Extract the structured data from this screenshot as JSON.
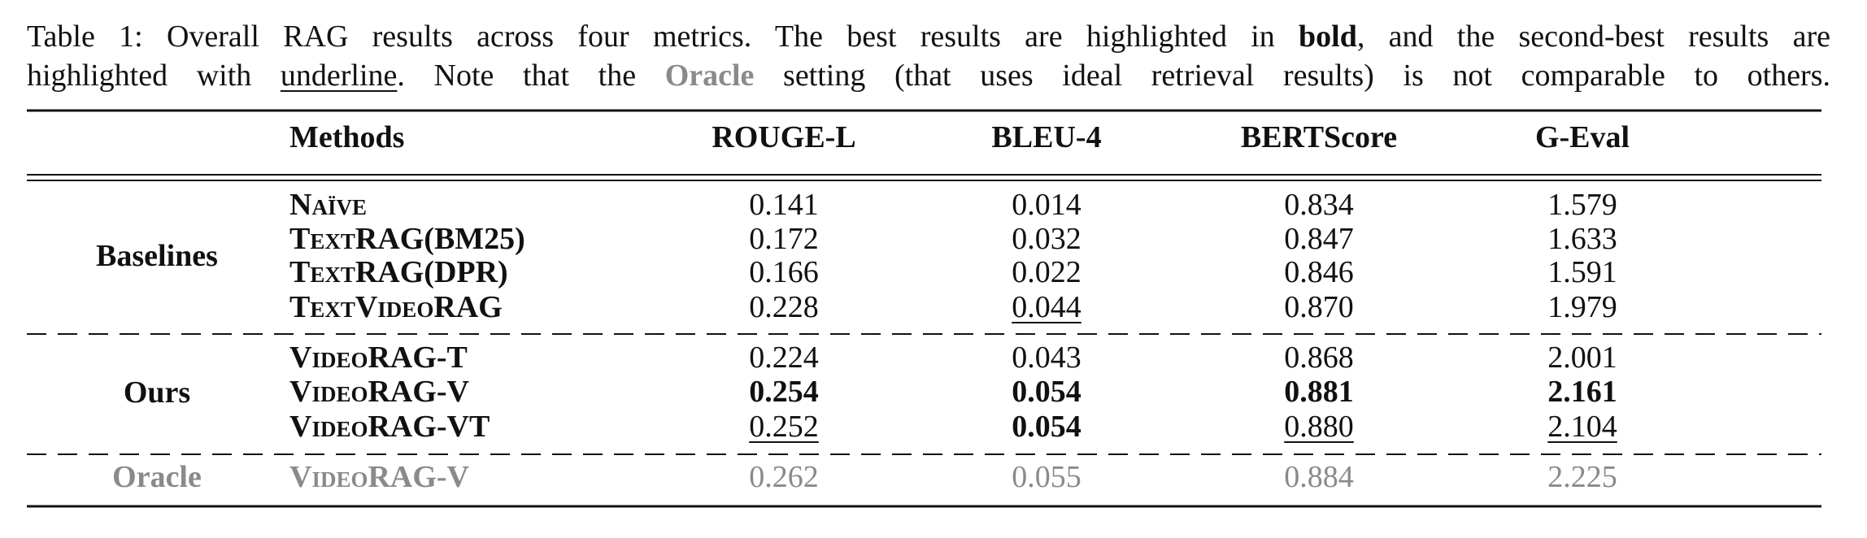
{
  "caption": {
    "lines": [
      [
        {
          "text": "Table 1: Overall RAG results across four metrics. The best results are highlighted in ",
          "style": "normal"
        },
        {
          "text": "bold",
          "style": "bold"
        },
        {
          "text": ", and the second-best results are",
          "style": "normal"
        }
      ],
      [
        {
          "text": "highlighted with ",
          "style": "normal"
        },
        {
          "text": "underline",
          "style": "underline"
        },
        {
          "text": ". Note that the ",
          "style": "normal"
        },
        {
          "text": "Oracle",
          "style": "gray-bold"
        },
        {
          "text": " setting (that uses ideal retrieval results) is not comparable to others.",
          "style": "normal"
        }
      ]
    ]
  },
  "table": {
    "header": [
      "Methods",
      "ROUGE-L",
      "BLEU-4",
      "BERTScore",
      "G-Eval"
    ],
    "groups": [
      {
        "label": "Baselines",
        "color": "black",
        "rows": [
          {
            "method": "Naïve",
            "cells": [
              {
                "text": "0.141"
              },
              {
                "text": "0.014"
              },
              {
                "text": "0.834"
              },
              {
                "text": "1.579"
              }
            ]
          },
          {
            "method": "TextRAG(BM25)",
            "cells": [
              {
                "text": "0.172"
              },
              {
                "text": "0.032"
              },
              {
                "text": "0.847"
              },
              {
                "text": "1.633"
              }
            ]
          },
          {
            "method": "TextRAG(DPR)",
            "cells": [
              {
                "text": "0.166"
              },
              {
                "text": "0.022"
              },
              {
                "text": "0.846"
              },
              {
                "text": "1.591"
              }
            ]
          },
          {
            "method": "TextVideoRAG",
            "cells": [
              {
                "text": "0.228"
              },
              {
                "text": "0.044",
                "style": "underline"
              },
              {
                "text": "0.870"
              },
              {
                "text": "1.979"
              }
            ]
          }
        ]
      },
      {
        "label": "Ours",
        "color": "black",
        "rows": [
          {
            "method": "VideoRAG-T",
            "cells": [
              {
                "text": "0.224"
              },
              {
                "text": "0.043"
              },
              {
                "text": "0.868"
              },
              {
                "text": "2.001"
              }
            ]
          },
          {
            "method": "VideoRAG-V",
            "cells": [
              {
                "text": "0.254",
                "style": "bold"
              },
              {
                "text": "0.054",
                "style": "bold"
              },
              {
                "text": "0.881",
                "style": "bold"
              },
              {
                "text": "2.161",
                "style": "bold"
              }
            ]
          },
          {
            "method": "VideoRAG-VT",
            "cells": [
              {
                "text": "0.252",
                "style": "underline"
              },
              {
                "text": "0.054",
                "style": "bold"
              },
              {
                "text": "0.880",
                "style": "underline"
              },
              {
                "text": "2.104",
                "style": "underline"
              }
            ]
          }
        ]
      },
      {
        "label": "Oracle",
        "color": "gray",
        "rows": [
          {
            "method": "VideoRAG-V",
            "cells": [
              {
                "text": "0.262"
              },
              {
                "text": "0.055"
              },
              {
                "text": "0.884"
              },
              {
                "text": "2.225"
              }
            ]
          }
        ]
      }
    ]
  }
}
